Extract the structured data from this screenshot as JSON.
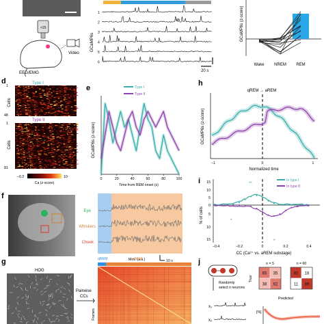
{
  "panels": {
    "a": {
      "labels": {
        "video": "Video",
        "eeg": "EEG/EMG",
        "objective": "×25"
      }
    },
    "b": {
      "ylabel": "GCaMP6s",
      "cells": [
        "1",
        "2",
        "3",
        "4",
        "5",
        "6"
      ],
      "scale": "20 s",
      "state_colors": [
        "#f4b33a",
        "#2f9bd8",
        "#9a9a9a"
      ]
    },
    "c": {
      "ylabel": "GCaMP6s (z-score)",
      "categories": [
        "Wake",
        "NREM",
        "REM"
      ],
      "bar_color": "#2aa7e6"
    },
    "d": {
      "label": "d",
      "ylabel": "Cells",
      "type1": "Type I",
      "type2": "Type II",
      "type1_count": "48",
      "type2_count": "81",
      "cb_min": "−0.2",
      "cb_max": "10",
      "cb_label": "Ca (z-score)"
    },
    "e": {
      "label": "e",
      "legend1": "Type I",
      "legend2": "Type II",
      "ylabel": "GCaMP6s (z-score)",
      "xlabel": "Time from REM onset (s)",
      "xticks": [
        "0",
        "20",
        "40",
        "60",
        "80",
        "100"
      ]
    },
    "f": {
      "label": "f",
      "traces": [
        "Eye",
        "Whiskers",
        "Cheek"
      ],
      "mov": "Mov. (a.u.)",
      "scale": "10 s"
    },
    "g": {
      "label": "g",
      "hog": "HOG",
      "pairwise": "Pairwise",
      "pairwise2": "CCs",
      "qrem": "qREM",
      "arem": "aREM",
      "frames": "Frames"
    },
    "h": {
      "label": "h",
      "title": "qREM → aREM",
      "ylabel": "GCaMP6s (z-score)",
      "xlabel": "Normalized time",
      "xticks": [
        "−1",
        "0",
        "1"
      ]
    },
    "i": {
      "label": "i",
      "legend1": "In type I",
      "legend2": "In type II",
      "ylabel": "% of cells",
      "xlabel": "CC (Ca²⁺ vs. aREM substage)",
      "xticks": [
        "−0.4",
        "−0.2",
        "0",
        "0.2",
        "0.4"
      ],
      "yticks_top": [
        "15",
        "10",
        "5",
        "0"
      ],
      "yticks_bot": [
        "5",
        "10",
        "15"
      ],
      "stars": "**",
      "star_single": "*"
    },
    "j": {
      "label": "j",
      "randomly": "Randomly",
      "select": "select n neurons",
      "x1": "x₁",
      "x2": "x₂",
      "n5": "n = 5",
      "n60": "n = 60",
      "true_label": "True",
      "predicted": "Predicted",
      "m5": [
        "65",
        "35",
        "38",
        "62"
      ],
      "m60": [
        "82",
        "18",
        "11",
        "89"
      ],
      "pct": "[%]"
    }
  },
  "colors": {
    "type1": "#3aaeab",
    "type2": "#8e44ad",
    "qrem": "#2f8fe0",
    "arem": "#e8843a",
    "arem_bg": "#f7c9a0",
    "qrem_bg": "#a7cdf2"
  },
  "chart_data": [
    {
      "type": "line",
      "x": [
        0,
        5,
        10,
        15,
        20,
        25,
        30,
        35,
        40,
        45,
        50,
        55,
        60,
        65,
        70,
        75,
        80,
        85,
        90,
        95,
        100
      ],
      "series": [
        {
          "name": "Type I",
          "values": [
            0.0,
            0.9,
            0.7,
            0.4,
            0.6,
            0.8,
            0.6,
            0.7,
            0.5,
            0.3,
            0.6,
            0.9,
            0.7,
            0.6,
            0.3,
            0.2,
            0.5,
            0.3,
            0.2,
            0.1,
            0.0
          ]
        },
        {
          "name": "Type II",
          "values": [
            0.2,
            0.5,
            0.8,
            0.6,
            0.4,
            0.3,
            0.5,
            0.7,
            0.8,
            0.6,
            0.5,
            0.7,
            0.8,
            0.7,
            0.6,
            0.7,
            0.8,
            0.6,
            0.5,
            0.4,
            0.3
          ]
        }
      ],
      "xlabel": "Time from REM onset (s)",
      "ylabel": "GCaMP6s (z-score)"
    }
  ]
}
